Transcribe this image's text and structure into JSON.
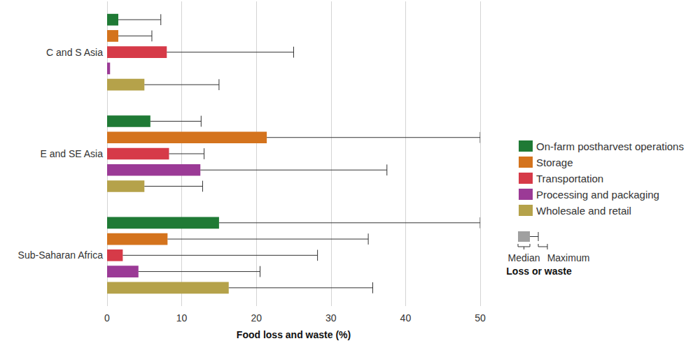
{
  "chart_data": {
    "type": "bar",
    "orientation": "horizontal",
    "x_label": "Food loss and waste (%)",
    "categories": [
      "C and S Asia",
      "E and SE Asia",
      "Sub-Saharan Africa"
    ],
    "series": [
      {
        "name": "On-farm postharvest operations",
        "color": "#1f7a35",
        "values": [
          1.5,
          5.8,
          15.0
        ],
        "max": [
          7.2,
          12.6,
          50.0
        ]
      },
      {
        "name": "Storage",
        "color": "#d4731d",
        "values": [
          1.5,
          21.4,
          8.1
        ],
        "max": [
          6.0,
          50.0,
          35.0
        ]
      },
      {
        "name": "Transportation",
        "color": "#d63a48",
        "values": [
          8.0,
          8.3,
          2.1
        ],
        "max": [
          25.0,
          13.0,
          28.2
        ]
      },
      {
        "name": "Processing and packaging",
        "color": "#9b3a96",
        "values": [
          0.4,
          12.5,
          4.2
        ],
        "max": [
          null,
          37.5,
          20.5
        ]
      },
      {
        "name": "Wholesale and retail",
        "color": "#b5a24a",
        "values": [
          5.0,
          5.0,
          16.3
        ],
        "max": [
          15.0,
          12.8,
          35.6
        ]
      }
    ],
    "xlim": [
      0,
      50
    ],
    "xticks": [
      0,
      10,
      20,
      30,
      40,
      50
    ],
    "grid": true,
    "legend": "right",
    "legend_key": {
      "color": "#a0a0a0",
      "median": "Median",
      "maximum": "Maximum",
      "title": "Loss or waste"
    }
  }
}
